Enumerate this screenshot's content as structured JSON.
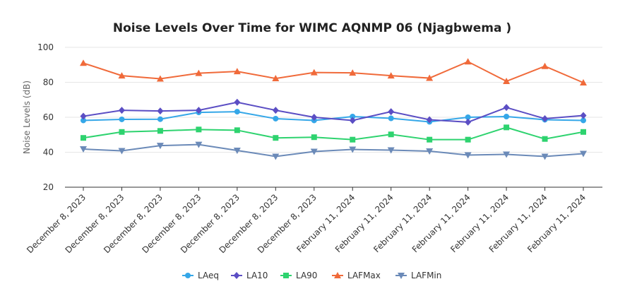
{
  "chart_data": {
    "type": "line",
    "title": "Noise Levels Over Time for WIMC AQNMP 06 (Njagbwema )",
    "xlabel": "",
    "ylabel": "Noise Levels (dB)",
    "ylim": [
      20,
      100
    ],
    "yticks": [
      20,
      40,
      60,
      80,
      100
    ],
    "grid": true,
    "legend": "bottom",
    "categories": [
      "December 8, 2023",
      "December 8, 2023",
      "December 8, 2023",
      "December 8, 2023",
      "December 8, 2023",
      "December 8, 2023",
      "December 8, 2023",
      "February 11, 2024",
      "February 11, 2024",
      "February 11, 2024",
      "February 11, 2024",
      "February 11, 2024",
      "February 11, 2024",
      "February 11, 2024"
    ],
    "series": [
      {
        "name": "LAeq",
        "color": "#35a7e8",
        "marker": "circle",
        "values": [
          58.2,
          58.8,
          58.9,
          62.8,
          63.2,
          59.2,
          58.2,
          60.4,
          59.4,
          57.4,
          60.0,
          60.4,
          58.6,
          58.2
        ]
      },
      {
        "name": "LA10",
        "color": "#5b4ec4",
        "marker": "diamond",
        "values": [
          60.6,
          64.0,
          63.6,
          64.0,
          68.6,
          64.0,
          60.0,
          58.2,
          63.2,
          58.6,
          57.2,
          65.6,
          59.2,
          61.0
        ]
      },
      {
        "name": "LA90",
        "color": "#2ed36f",
        "marker": "square",
        "values": [
          48.2,
          51.6,
          52.2,
          53.0,
          52.6,
          48.2,
          48.6,
          47.2,
          50.2,
          47.2,
          47.2,
          54.2,
          47.6,
          51.6
        ]
      },
      {
        "name": "LAFMax",
        "color": "#f06a3a",
        "marker": "triangle-up",
        "values": [
          91.0,
          83.8,
          82.0,
          85.2,
          86.2,
          82.2,
          85.6,
          85.4,
          83.8,
          82.4,
          91.8,
          80.6,
          89.2,
          79.8
        ]
      },
      {
        "name": "LAFMin",
        "color": "#6b8ab8",
        "marker": "triangle-down",
        "values": [
          41.8,
          40.8,
          43.8,
          44.4,
          41.0,
          37.6,
          40.4,
          41.6,
          41.2,
          40.6,
          38.4,
          38.8,
          37.6,
          39.2
        ]
      }
    ]
  }
}
